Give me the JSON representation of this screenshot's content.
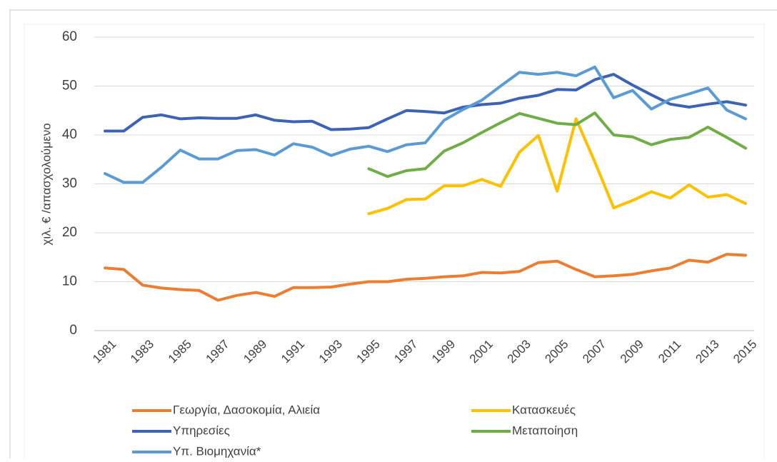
{
  "chart_data": {
    "type": "line",
    "y_label": "χιλ. € /απασχολούμενο",
    "categories": [
      "1981",
      null,
      "1983",
      null,
      "1985",
      null,
      "1987",
      null,
      "1989",
      null,
      "1991",
      null,
      "1993",
      null,
      "1995",
      null,
      "1997",
      null,
      "1999",
      null,
      "2001",
      null,
      "2003",
      null,
      "2005",
      null,
      "2007",
      null,
      "2009",
      null,
      "2011",
      null,
      "2013",
      null,
      "2015"
    ],
    "ylim": [
      0,
      60
    ],
    "yticks": [
      0,
      10,
      20,
      30,
      40,
      50,
      60
    ],
    "grid": true,
    "legend": "bottom",
    "series": [
      {
        "name": "Γεωργία, Δασοκομία, Αλιεία",
        "color": "#ed7d31",
        "values": [
          12.8,
          12.5,
          9.3,
          8.7,
          8.4,
          8.2,
          6.2,
          7.2,
          7.8,
          7.0,
          8.8,
          8.8,
          8.9,
          9.5,
          10.0,
          10.0,
          10.5,
          10.7,
          11.0,
          11.2,
          11.9,
          11.8,
          12.1,
          13.9,
          14.2,
          12.5,
          11.0,
          11.2,
          11.5,
          12.2,
          12.8,
          14.4,
          14.0,
          15.6,
          15.4
        ]
      },
      {
        "name": "Κατασκευές",
        "color": "#ffc000",
        "values": [
          null,
          null,
          null,
          null,
          null,
          null,
          null,
          null,
          null,
          null,
          null,
          null,
          null,
          null,
          23.9,
          25.0,
          26.8,
          26.9,
          29.6,
          29.6,
          30.9,
          29.5,
          36.5,
          39.9,
          28.5,
          43.3,
          34.5,
          25.1,
          26.6,
          28.4,
          27.1,
          29.8,
          27.3,
          27.8,
          26.0
        ]
      },
      {
        "name": "Υπηρεσίες",
        "color": "#3d64b4",
        "values": [
          40.8,
          40.8,
          43.6,
          44.1,
          43.3,
          43.5,
          43.4,
          43.4,
          44.1,
          43.0,
          42.7,
          42.8,
          41.1,
          41.2,
          41.5,
          43.3,
          45.0,
          44.8,
          44.5,
          45.7,
          46.2,
          46.5,
          47.5,
          48.1,
          49.3,
          49.2,
          51.3,
          52.4,
          50.2,
          48.2,
          46.3,
          45.7,
          46.3,
          46.8,
          46.1
        ]
      },
      {
        "name": "Μεταποίηση",
        "color": "#70ad47",
        "values": [
          null,
          null,
          null,
          null,
          null,
          null,
          null,
          null,
          null,
          null,
          null,
          null,
          null,
          null,
          33.1,
          31.5,
          32.7,
          33.1,
          36.7,
          38.4,
          40.5,
          42.5,
          44.4,
          43.4,
          42.4,
          42.1,
          44.5,
          40.0,
          39.6,
          38.0,
          39.1,
          39.5,
          41.6,
          39.5,
          37.3
        ]
      },
      {
        "name": "Υπ. Βιομηχανία*",
        "color": "#5b9bd5",
        "values": [
          32.1,
          30.3,
          30.3,
          33.4,
          36.9,
          35.1,
          35.1,
          36.8,
          37.0,
          35.9,
          38.2,
          37.5,
          35.8,
          37.1,
          37.7,
          36.6,
          38.0,
          38.4,
          43.0,
          45.2,
          47.1,
          50.0,
          52.8,
          52.4,
          52.8,
          52.1,
          53.9,
          47.6,
          49.1,
          45.3,
          47.3,
          48.4,
          49.6,
          45.1,
          43.3
        ]
      }
    ]
  }
}
